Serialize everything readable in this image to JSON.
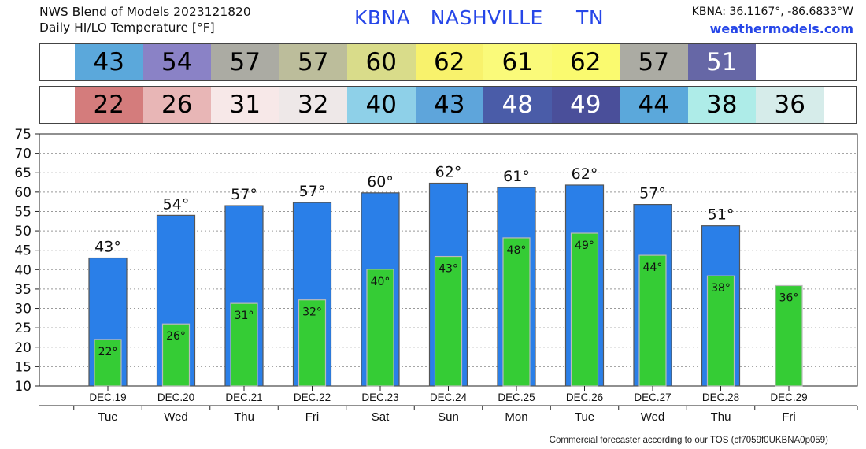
{
  "header": {
    "title_line1": "NWS Blend of Models 2023121820",
    "title_line2": "Daily HI/LO Temperature [°F]",
    "station_code": "KBNA",
    "station_name": "NASHVILLE",
    "station_state": "TN",
    "coords": "KBNA: 36.1167°, -86.6833°W",
    "site": "weathermodels.com"
  },
  "footer": "Commercial forecaster according to our TOS (cf7059f0UKBNA0p059)",
  "colors": {
    "high_bar": "#2a7fe8",
    "low_bar": "#35cc35",
    "accent_text": "#2646e8"
  },
  "strips": {
    "high": [
      {
        "value": "43",
        "bg": "#5ba8db",
        "fg": "#000000"
      },
      {
        "value": "54",
        "bg": "#8a82c6",
        "fg": "#000000"
      },
      {
        "value": "57",
        "bg": "#ababa3",
        "fg": "#000000"
      },
      {
        "value": "57",
        "bg": "#bcbd9b",
        "fg": "#000000"
      },
      {
        "value": "60",
        "bg": "#d9dc8a",
        "fg": "#000000"
      },
      {
        "value": "62",
        "bg": "#f8f26c",
        "fg": "#000000"
      },
      {
        "value": "61",
        "bg": "#fafa7a",
        "fg": "#000000"
      },
      {
        "value": "62",
        "bg": "#fafa6f",
        "fg": "#000000"
      },
      {
        "value": "57",
        "bg": "#ababa3",
        "fg": "#000000"
      },
      {
        "value": "51",
        "bg": "#6667a6",
        "fg": "#ffffff"
      }
    ],
    "low": [
      {
        "value": "22",
        "bg": "#d47c7c",
        "fg": "#000000"
      },
      {
        "value": "26",
        "bg": "#e8b6b6",
        "fg": "#000000"
      },
      {
        "value": "31",
        "bg": "#f7e8e8",
        "fg": "#000000"
      },
      {
        "value": "32",
        "bg": "#eee8e8",
        "fg": "#000000"
      },
      {
        "value": "40",
        "bg": "#8ed0e8",
        "fg": "#000000"
      },
      {
        "value": "43",
        "bg": "#5ea5db",
        "fg": "#000000"
      },
      {
        "value": "48",
        "bg": "#4a5ca8",
        "fg": "#ffffff"
      },
      {
        "value": "49",
        "bg": "#4a4f9a",
        "fg": "#ffffff"
      },
      {
        "value": "44",
        "bg": "#5ba8db",
        "fg": "#000000"
      },
      {
        "value": "38",
        "bg": "#aeece8",
        "fg": "#000000"
      },
      {
        "value": "36",
        "bg": "#d6ecea",
        "fg": "#000000"
      }
    ]
  },
  "chart_data": {
    "type": "bar",
    "ylim": [
      10,
      75
    ],
    "yticks": [
      10,
      15,
      20,
      25,
      30,
      35,
      40,
      45,
      50,
      55,
      60,
      65,
      70,
      75
    ],
    "grid": true,
    "categories": [
      "DEC.19",
      "DEC.20",
      "DEC.21",
      "DEC.22",
      "DEC.23",
      "DEC.24",
      "DEC.25",
      "DEC.26",
      "DEC.27",
      "DEC.28",
      "DEC.29"
    ],
    "weekdays": [
      "Tue",
      "Wed",
      "Thu",
      "Fri",
      "Sat",
      "Sun",
      "Mon",
      "Tue",
      "Wed",
      "Thu",
      "Fri"
    ],
    "series": [
      {
        "key": "high",
        "values": [
          43,
          54,
          56.5,
          57.3,
          59.8,
          62.3,
          61.2,
          61.8,
          56.8,
          51.3,
          null
        ],
        "labels": [
          "43°",
          "54°",
          "57°",
          "57°",
          "60°",
          "62°",
          "61°",
          "62°",
          "57°",
          "51°",
          ""
        ]
      },
      {
        "key": "low",
        "values": [
          22,
          26,
          31.3,
          32.2,
          40.1,
          43.4,
          48.2,
          49.4,
          43.7,
          38.4,
          35.9
        ],
        "labels": [
          "22°",
          "26°",
          "31°",
          "32°",
          "40°",
          "43°",
          "48°",
          "49°",
          "44°",
          "38°",
          "36°"
        ]
      }
    ]
  }
}
